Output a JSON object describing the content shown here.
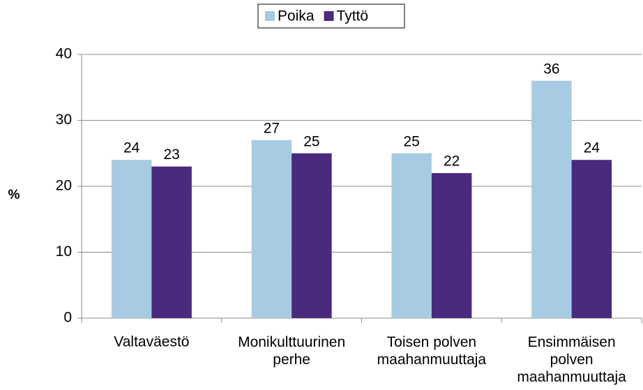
{
  "chart_data": {
    "type": "bar",
    "categories": [
      "Valtaväestö",
      "Monikulttuurinen\nperhe",
      "Toisen polven\nmaahanmuuttaja",
      "Ensimmäisen\npolven\nmaahanmuuttaja"
    ],
    "series": [
      {
        "name": "Poika",
        "color": "#a6cbe2",
        "values": [
          24,
          27,
          25,
          36
        ]
      },
      {
        "name": "Tyttö",
        "color": "#4a2a7d",
        "values": [
          23,
          25,
          22,
          24
        ]
      }
    ],
    "y_label": "%",
    "ylim": [
      0,
      40
    ],
    "yticks": [
      0,
      10,
      20,
      30,
      40
    ],
    "grid": true,
    "legend": "top"
  }
}
